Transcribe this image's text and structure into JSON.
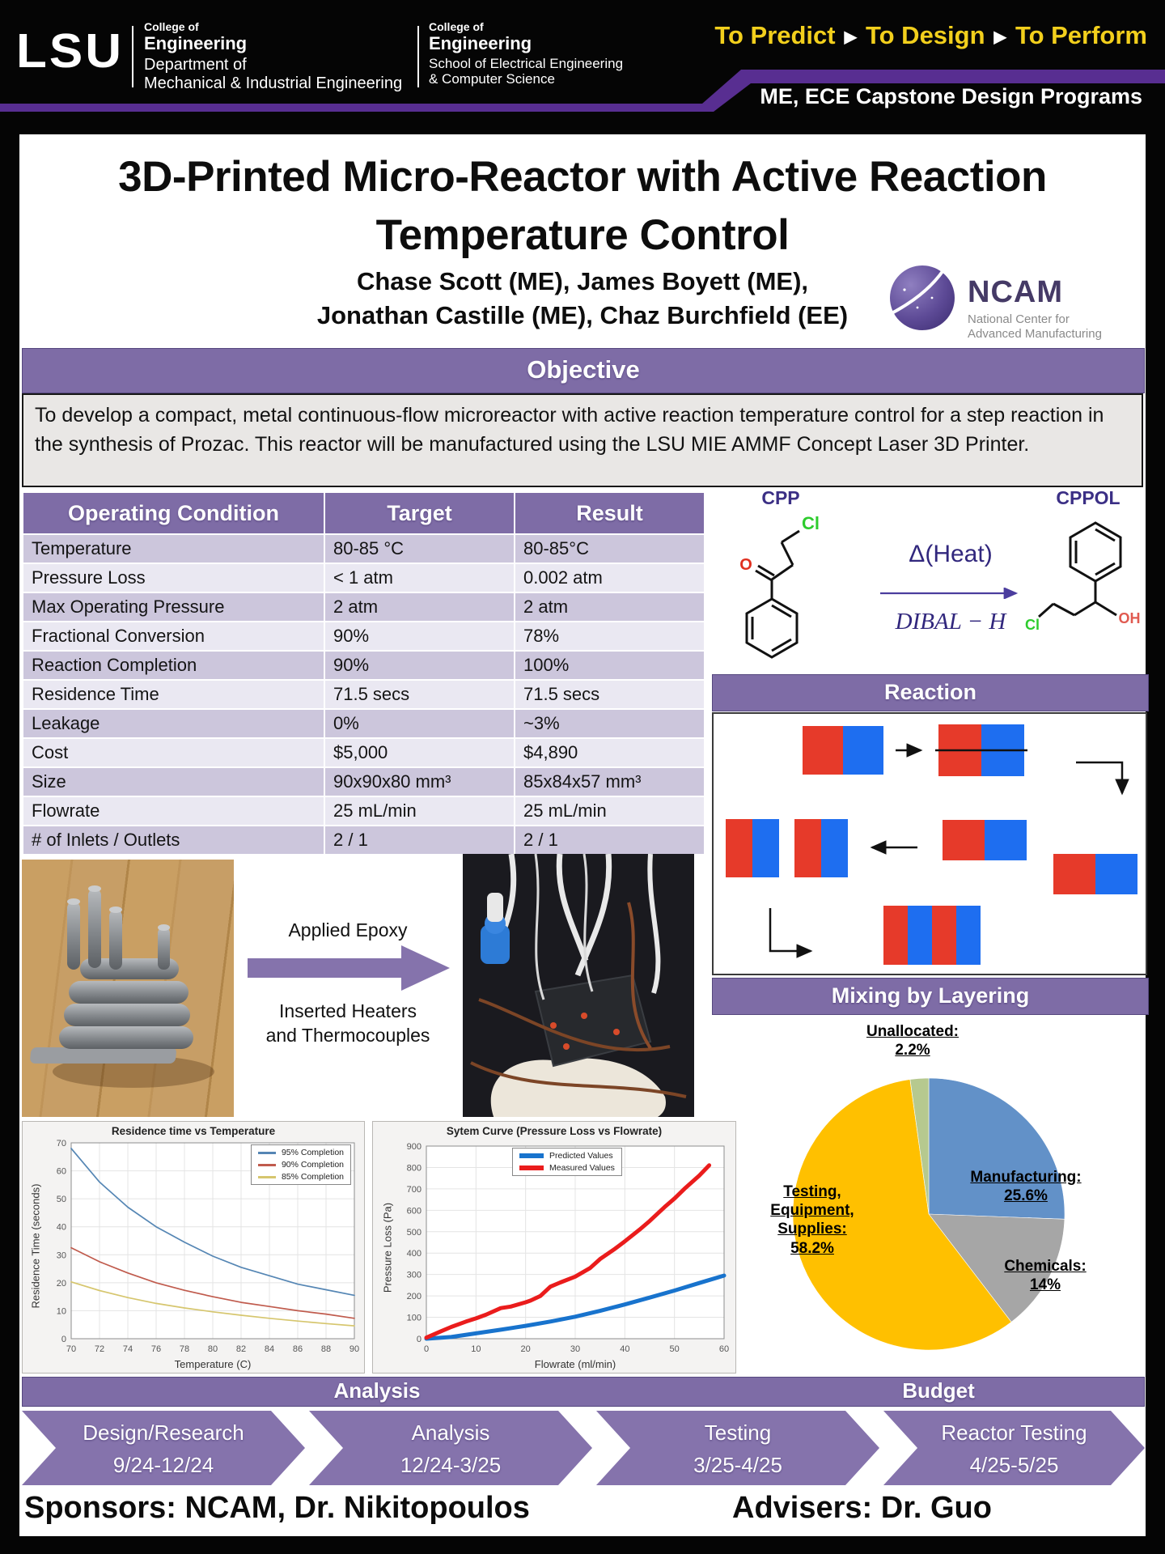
{
  "header": {
    "lsu": "LSU",
    "college1": {
      "l1": "College of",
      "l2": "Engineering",
      "l3": "Department of",
      "l4": "Mechanical & Industrial Engineering"
    },
    "college2": {
      "l1": "College of",
      "l2": "Engineering",
      "l3": "School of Electrical Engineering",
      "l4": "& Computer Science"
    },
    "motto": {
      "parts": [
        "To Predict",
        "To Design",
        "To Perform"
      ],
      "separator": "▶"
    },
    "program": "ME, ECE Capstone Design Programs"
  },
  "title": {
    "line1": "3D-Printed Micro-Reactor with Active Reaction",
    "line2": "Temperature Control"
  },
  "authors": {
    "line1": "Chase Scott (ME), James Boyett (ME),",
    "line2": "Jonathan Castille (ME), Chaz Burchfield (EE)"
  },
  "ncam": {
    "name": "NCAM",
    "sub1": "National Center for",
    "sub2": "Advanced Manufacturing"
  },
  "objective": {
    "heading": "Objective",
    "text": "To develop a compact, metal continuous-flow microreactor with active reaction temperature control for a step reaction in the synthesis of Prozac. This reactor will be manufactured using the LSU MIE AMMF Concept Laser 3D Printer."
  },
  "spec_table": {
    "headers": [
      "Operating Condition",
      "Target",
      "Result"
    ],
    "rows": [
      [
        "Temperature",
        "80-85 °C",
        "80-85°C"
      ],
      [
        "Pressure Loss",
        "< 1 atm",
        "0.002 atm"
      ],
      [
        "Max Operating Pressure",
        "2 atm",
        "2 atm"
      ],
      [
        "Fractional Conversion",
        "90%",
        "78%"
      ],
      [
        "Reaction Completion",
        "90%",
        "100%"
      ],
      [
        "Residence Time",
        "71.5 secs",
        "71.5 secs"
      ],
      [
        "Leakage",
        "0%",
        "~3%"
      ],
      [
        "Cost",
        "$5,000",
        "$4,890"
      ],
      [
        "Size",
        "90x90x80 mm³",
        "85x84x57 mm³"
      ],
      [
        "Flowrate",
        "25 mL/min",
        "25 mL/min"
      ],
      [
        "# of Inlets / Outlets",
        "2 / 1",
        "2 / 1"
      ]
    ]
  },
  "reaction": {
    "heading": "Reaction",
    "reactant_label": "CPP",
    "product_label": "CPPOL",
    "condition_top": "Δ(Heat)",
    "condition_bottom": "DIBAL − H",
    "atoms": {
      "o": "O",
      "cl": "Cl",
      "oh": "OH",
      "cl2": "Cl"
    }
  },
  "mixing": {
    "heading": "Mixing by Layering",
    "red": "#e63a2a",
    "blue": "#1e6ef0"
  },
  "process_photos": {
    "caption_top": "Applied Epoxy",
    "caption_bottom_line1": "Inserted Heaters",
    "caption_bottom_line2": "and Thermocouples"
  },
  "chart_data": [
    {
      "type": "line",
      "title": "Residence time vs Temperature",
      "xlabel": "Temperature (C)",
      "ylabel": "Residence Time (seconds)",
      "xlim": [
        70,
        90
      ],
      "ylim": [
        0,
        70
      ],
      "xtick_step": 2,
      "ytick_step": 10,
      "grid": true,
      "legend_position": "top-right",
      "x": [
        70,
        72,
        74,
        76,
        78,
        80,
        82,
        84,
        86,
        88,
        90
      ],
      "series": [
        {
          "name": "95% Completion",
          "color": "#5586b4",
          "width": 1.7,
          "values": [
            68,
            56,
            47,
            40,
            34.5,
            29.5,
            25.5,
            22.5,
            19.5,
            17.5,
            15.5
          ]
        },
        {
          "name": "90% Completion",
          "color": "#c05b4d",
          "width": 1.7,
          "values": [
            32.5,
            27.5,
            23.5,
            20,
            17.3,
            15,
            13,
            11.5,
            10,
            8.8,
            7.3
          ]
        },
        {
          "name": "85% Completion",
          "color": "#d6c66e",
          "width": 1.7,
          "values": [
            20.3,
            17.2,
            14.7,
            12.6,
            11,
            9.6,
            8.4,
            7.3,
            6.3,
            5.4,
            4.6
          ]
        }
      ]
    },
    {
      "type": "line",
      "title": "Sytem Curve (Pressure Loss vs Flowrate)",
      "xlabel": "Flowrate (ml/min)",
      "ylabel": "Pressure Loss (Pa)",
      "xlim": [
        0,
        60
      ],
      "ylim": [
        0,
        900
      ],
      "xtick_step": 10,
      "ytick_step": 100,
      "grid": true,
      "legend_position": "top-center",
      "series": [
        {
          "name": "Predicted Values",
          "color": "#1873cd",
          "width": 5,
          "x": [
            0,
            5,
            10,
            15,
            20,
            25,
            30,
            35,
            40,
            45,
            50,
            55,
            60
          ],
          "values": [
            0,
            8,
            25,
            42,
            60,
            80,
            103,
            130,
            160,
            192,
            225,
            260,
            295
          ]
        },
        {
          "name": "Measured Values",
          "color": "#ea1c1c",
          "width": 5,
          "x": [
            0,
            3,
            5,
            8,
            10,
            12,
            15,
            17,
            20,
            21,
            23,
            25,
            27,
            30,
            33,
            35,
            38,
            40,
            43,
            45,
            48,
            50,
            52,
            55,
            57
          ],
          "values": [
            5,
            35,
            55,
            80,
            95,
            112,
            143,
            150,
            170,
            178,
            200,
            243,
            263,
            290,
            330,
            372,
            420,
            455,
            510,
            550,
            615,
            655,
            700,
            762,
            810
          ]
        }
      ]
    },
    {
      "type": "pie",
      "start_angle": "top",
      "direction": "clockwise",
      "slices": [
        {
          "label": "Manufacturing:",
          "value": 25.6,
          "display": "25.6%",
          "color": "#6291c8"
        },
        {
          "label": "Chemicals:",
          "value": 14,
          "display": "14%",
          "color": "#a6a6a6"
        },
        {
          "label": "Testing, Equipment, Supplies:",
          "value": 58.2,
          "display": "58.2%",
          "color": "#ffc000"
        },
        {
          "label": "Unallocated:",
          "value": 2.2,
          "display": "2.2%",
          "color": "#b6c98f"
        }
      ]
    }
  ],
  "timeline": {
    "sections": {
      "left": "Analysis",
      "right": "Budget"
    },
    "phases": [
      {
        "label": "Design/Research",
        "dates": "9/24-12/24"
      },
      {
        "label": "Analysis",
        "dates": "12/24-3/25"
      },
      {
        "label": "Testing",
        "dates": "3/25-4/25"
      },
      {
        "label": "Reactor Testing",
        "dates": "4/25-5/25"
      }
    ]
  },
  "footer": {
    "sponsors": "Sponsors: NCAM, Dr. Nikitopoulos",
    "advisers": "Advisers: Dr. Guo"
  }
}
